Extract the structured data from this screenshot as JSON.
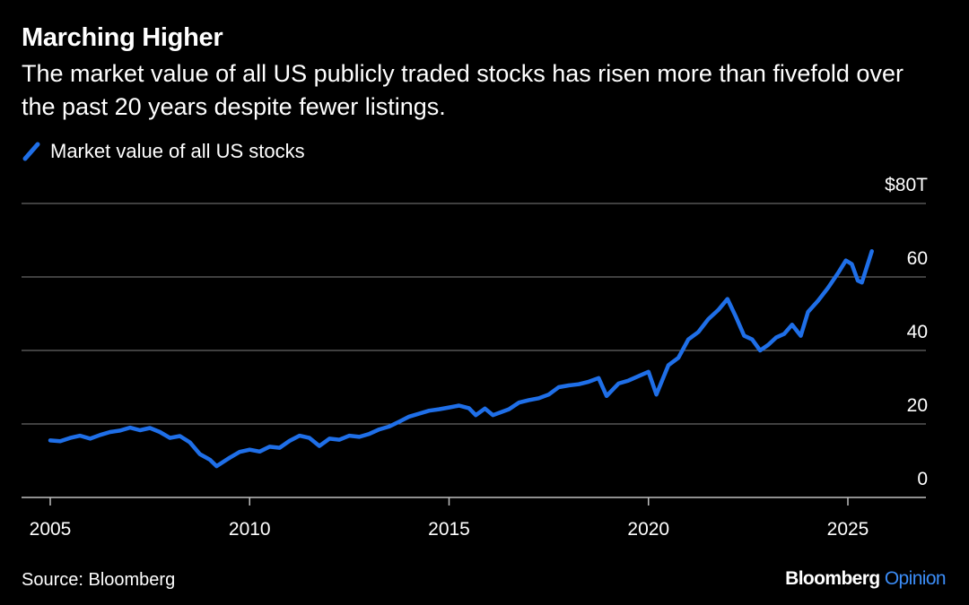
{
  "header": {
    "title": "Marching Higher",
    "subtitle": "The market value of all US publicly traded stocks has risen more than fivefold over the past 20 years despite fewer listings."
  },
  "footer": {
    "source": "Source: Bloomberg",
    "brand_bloomberg": "Bloomberg",
    "brand_opinion": "Opinion"
  },
  "colors": {
    "background": "#000000",
    "line": "#1f6fe8",
    "grid": "#7f7f7f",
    "text": "#ffffff",
    "accent": "#3b8cf6"
  },
  "chart_data": {
    "type": "line",
    "title": "Marching Higher",
    "subtitle": "The market value of all US publicly traded stocks has risen more than fivefold over the past 20 years despite fewer listings.",
    "xlabel": "",
    "ylabel": "",
    "xlim": [
      2005,
      2027.5
    ],
    "ylim": [
      0,
      80
    ],
    "x_ticks": [
      2005,
      2010,
      2015,
      2020,
      2025
    ],
    "x_tick_labels": [
      "2005",
      "2010",
      "2015",
      "2020",
      "2025"
    ],
    "y_ticks": [
      0,
      20,
      40,
      60,
      80
    ],
    "y_tick_labels": [
      "0",
      "20",
      "40",
      "60",
      "$80T"
    ],
    "grid": "horizontal",
    "legend_position": "top-left",
    "series": [
      {
        "name": "Market value of all US stocks",
        "color": "#1f6fe8",
        "x": [
          2005.0,
          2005.25,
          2005.5,
          2005.75,
          2006.0,
          2006.25,
          2006.5,
          2006.75,
          2007.0,
          2007.25,
          2007.5,
          2007.75,
          2008.0,
          2008.25,
          2008.5,
          2008.75,
          2009.0,
          2009.17,
          2009.5,
          2009.75,
          2010.0,
          2010.25,
          2010.5,
          2010.75,
          2011.0,
          2011.25,
          2011.5,
          2011.75,
          2012.0,
          2012.25,
          2012.5,
          2012.75,
          2013.0,
          2013.25,
          2013.5,
          2013.75,
          2014.0,
          2014.25,
          2014.5,
          2014.75,
          2015.0,
          2015.25,
          2015.5,
          2015.67,
          2015.9,
          2016.1,
          2016.5,
          2016.75,
          2017.0,
          2017.25,
          2017.5,
          2017.75,
          2018.0,
          2018.25,
          2018.5,
          2018.75,
          2018.95,
          2019.25,
          2019.5,
          2019.75,
          2020.0,
          2020.2,
          2020.5,
          2020.75,
          2021.0,
          2021.25,
          2021.5,
          2021.75,
          2021.98,
          2022.2,
          2022.4,
          2022.6,
          2022.8,
          2023.0,
          2023.2,
          2023.4,
          2023.6,
          2023.82,
          2024.0,
          2024.25,
          2024.5,
          2024.75,
          2024.95,
          2025.1,
          2025.25,
          2025.35,
          2025.6
        ],
        "values": [
          15.5,
          15.3,
          16.2,
          16.8,
          16.0,
          17.0,
          17.8,
          18.2,
          19.0,
          18.3,
          18.9,
          17.8,
          16.2,
          16.7,
          15.0,
          11.8,
          10.3,
          8.5,
          10.8,
          12.4,
          13.0,
          12.5,
          13.8,
          13.5,
          15.4,
          16.8,
          16.2,
          14.0,
          16.0,
          15.7,
          16.8,
          16.5,
          17.3,
          18.5,
          19.3,
          20.6,
          22.0,
          22.8,
          23.6,
          24.0,
          24.5,
          25.0,
          24.3,
          22.4,
          24.2,
          22.4,
          24.0,
          25.8,
          26.5,
          27.0,
          28.0,
          30.0,
          30.5,
          30.8,
          31.5,
          32.5,
          27.6,
          31.0,
          31.8,
          33.0,
          34.2,
          28.0,
          36.0,
          38.0,
          43.0,
          45.0,
          48.5,
          51.0,
          54.0,
          49.0,
          44.0,
          43.0,
          40.0,
          41.5,
          43.5,
          44.5,
          47.0,
          44.0,
          50.5,
          53.5,
          57.0,
          61.0,
          64.5,
          63.5,
          59.0,
          58.5,
          67.0
        ]
      }
    ]
  }
}
